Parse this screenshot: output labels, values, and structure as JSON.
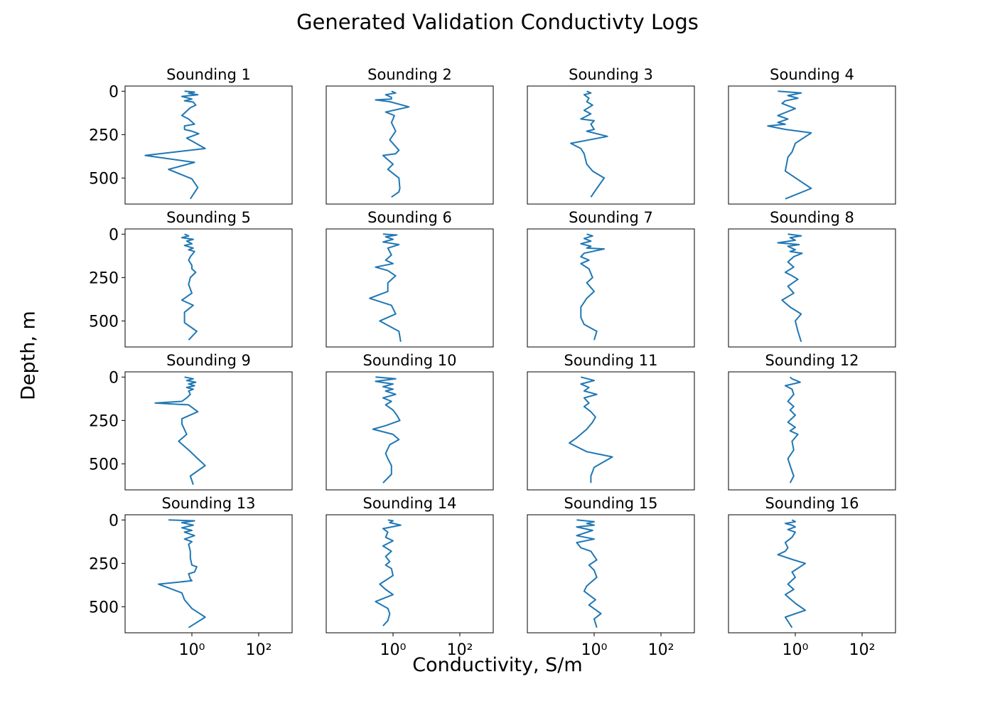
{
  "figure": {
    "title": "Generated Validation Conductivty Logs",
    "xlabel": "Conductivity, S/m",
    "ylabel": "Depth, m",
    "line_color": "#1f77b4"
  },
  "chart_data": {
    "type": "line",
    "x_scale": "log",
    "xlim": [
      0.01,
      1000
    ],
    "ylim": [
      650,
      -30
    ],
    "x_ticks": [
      1,
      100
    ],
    "x_tick_labels": [
      "10⁰",
      "10²"
    ],
    "y_ticks": [
      0,
      250,
      500
    ],
    "y_tick_labels": [
      "0",
      "250",
      "500"
    ],
    "grid": false,
    "panels": [
      {
        "title": "Sounding 1",
        "x": [
          0.6,
          1.2,
          0.8,
          1.5,
          0.5,
          1.0,
          0.6,
          1.1,
          1.3,
          0.9,
          0.5,
          0.8,
          1.2,
          0.6,
          0.6,
          1.0,
          1.6,
          0.7,
          2.5,
          0.04,
          1.2,
          0.2,
          1.0,
          1.5,
          0.9
        ],
        "y": [
          0,
          5,
          12,
          20,
          30,
          45,
          55,
          62,
          80,
          95,
          140,
          160,
          190,
          200,
          220,
          230,
          245,
          270,
          330,
          370,
          410,
          450,
          505,
          555,
          620
        ]
      },
      {
        "title": "Sounding 2",
        "x": [
          0.9,
          1.2,
          0.6,
          0.9,
          0.9,
          0.3,
          0.8,
          3.0,
          0.6,
          1.1,
          1.0,
          0.9,
          1.2,
          0.8,
          1.5,
          1.2,
          0.5,
          1.0,
          0.7,
          1.5,
          1.6,
          1.5,
          0.9
        ],
        "y": [
          0,
          10,
          20,
          35,
          45,
          50,
          60,
          90,
          120,
          140,
          160,
          180,
          230,
          280,
          340,
          360,
          370,
          420,
          450,
          500,
          560,
          580,
          610
        ]
      },
      {
        "title": "Sounding 3",
        "x": [
          0.6,
          0.8,
          0.5,
          0.7,
          0.6,
          0.9,
          0.5,
          0.8,
          0.4,
          1.0,
          0.8,
          1.0,
          0.6,
          2.5,
          0.2,
          0.4,
          0.5,
          0.6,
          0.9,
          2.0,
          1.2,
          0.8
        ],
        "y": [
          0,
          10,
          20,
          40,
          60,
          80,
          110,
          130,
          160,
          170,
          190,
          220,
          230,
          260,
          300,
          330,
          360,
          420,
          460,
          500,
          560,
          610
        ]
      },
      {
        "title": "Sounding 4",
        "x": [
          0.3,
          1.5,
          0.6,
          1.2,
          0.5,
          0.4,
          1.0,
          0.3,
          0.6,
          0.3,
          0.5,
          0.15,
          0.5,
          3.0,
          1.0,
          0.8,
          0.6,
          0.5,
          3.0,
          0.5
        ],
        "y": [
          0,
          10,
          25,
          40,
          55,
          70,
          100,
          140,
          160,
          180,
          190,
          200,
          220,
          240,
          300,
          350,
          380,
          460,
          560,
          620
        ]
      },
      {
        "title": "Sounding 5",
        "x": [
          0.6,
          0.8,
          0.5,
          1.1,
          0.7,
          1.0,
          0.6,
          1.1,
          0.8,
          1.2,
          0.9,
          0.8,
          1.0,
          1.0,
          1.3,
          0.9,
          0.8,
          1.0,
          0.5,
          1.1,
          0.6,
          0.6,
          1.4,
          0.8
        ],
        "y": [
          0,
          10,
          20,
          30,
          40,
          55,
          65,
          80,
          90,
          100,
          130,
          150,
          180,
          200,
          220,
          250,
          290,
          340,
          380,
          410,
          450,
          510,
          560,
          610
        ]
      },
      {
        "title": "Sounding 6",
        "x": [
          0.5,
          1.3,
          0.6,
          1.0,
          0.5,
          1.5,
          0.7,
          0.9,
          0.6,
          1.0,
          0.3,
          0.7,
          1.2,
          0.7,
          0.7,
          0.2,
          0.9,
          1.2,
          0.4,
          1.5,
          1.7
        ],
        "y": [
          0,
          5,
          15,
          30,
          45,
          60,
          80,
          120,
          150,
          170,
          190,
          210,
          240,
          280,
          330,
          370,
          410,
          460,
          500,
          560,
          620
        ]
      },
      {
        "title": "Sounding 7",
        "x": [
          0.6,
          0.9,
          0.5,
          0.8,
          0.4,
          0.8,
          0.6,
          2.0,
          0.5,
          0.4,
          0.7,
          0.4,
          0.7,
          0.9,
          0.6,
          1.0,
          0.6,
          0.4,
          0.4,
          0.5,
          1.2,
          1.0
        ],
        "y": [
          0,
          10,
          25,
          40,
          55,
          70,
          80,
          85,
          110,
          130,
          150,
          170,
          200,
          250,
          280,
          330,
          370,
          420,
          480,
          520,
          560,
          610
        ]
      },
      {
        "title": "Sounding 8",
        "x": [
          0.6,
          1.5,
          0.7,
          1.0,
          0.3,
          1.3,
          0.6,
          1.0,
          0.7,
          1.6,
          0.9,
          0.6,
          0.9,
          0.5,
          0.8,
          1.2,
          0.6,
          0.9,
          0.4,
          0.7,
          1.5,
          1.0,
          1.2,
          1.5
        ],
        "y": [
          0,
          10,
          20,
          35,
          50,
          60,
          70,
          90,
          100,
          110,
          130,
          160,
          190,
          220,
          240,
          260,
          300,
          340,
          380,
          420,
          460,
          500,
          560,
          620
        ]
      },
      {
        "title": "Sounding 9",
        "x": [
          0.6,
          1.1,
          0.7,
          1.3,
          0.8,
          1.2,
          0.7,
          1.1,
          0.8,
          0.9,
          0.7,
          0.5,
          0.08,
          0.8,
          1.5,
          0.5,
          0.5,
          0.7,
          0.4,
          0.8,
          1.5,
          2.5,
          0.9,
          1.1
        ],
        "y": [
          0,
          10,
          20,
          30,
          40,
          50,
          60,
          70,
          80,
          100,
          120,
          140,
          150,
          160,
          200,
          240,
          270,
          330,
          370,
          420,
          470,
          510,
          570,
          620
        ]
      },
      {
        "title": "Sounding 10",
        "x": [
          0.3,
          1.2,
          0.3,
          1.0,
          0.5,
          1.0,
          0.6,
          1.2,
          0.5,
          0.9,
          0.6,
          1.0,
          1.3,
          1.6,
          0.6,
          0.25,
          1.0,
          1.5,
          0.8,
          0.6,
          0.7,
          0.9,
          0.9,
          0.5
        ],
        "y": [
          0,
          10,
          25,
          40,
          55,
          70,
          80,
          100,
          120,
          140,
          160,
          190,
          220,
          250,
          280,
          300,
          330,
          360,
          390,
          440,
          470,
          510,
          560,
          610
        ]
      },
      {
        "title": "Sounding 11",
        "x": [
          0.4,
          1.0,
          0.4,
          0.7,
          0.5,
          1.2,
          0.5,
          0.7,
          0.5,
          0.8,
          1.1,
          0.9,
          0.6,
          0.3,
          0.18,
          0.6,
          3.5,
          1.0,
          0.8,
          0.8
        ],
        "y": [
          0,
          20,
          40,
          60,
          80,
          100,
          120,
          150,
          170,
          200,
          230,
          260,
          300,
          350,
          380,
          430,
          460,
          520,
          570,
          610
        ]
      },
      {
        "title": "Sounding 12",
        "x": [
          0.7,
          0.8,
          1.4,
          0.5,
          0.8,
          0.9,
          0.6,
          0.9,
          0.7,
          1.0,
          0.6,
          1.0,
          0.7,
          1.2,
          0.8,
          0.9,
          0.6,
          0.7,
          0.9,
          0.7
        ],
        "y": [
          0,
          10,
          30,
          50,
          70,
          100,
          140,
          170,
          190,
          220,
          260,
          290,
          310,
          330,
          370,
          420,
          470,
          510,
          570,
          610
        ]
      },
      {
        "title": "Sounding 13",
        "x": [
          0.2,
          1.2,
          0.5,
          1.1,
          0.5,
          1.0,
          0.6,
          1.2,
          0.6,
          1.0,
          0.8,
          0.9,
          0.9,
          1.0,
          1.4,
          1.2,
          0.8,
          0.9,
          1.0,
          0.1,
          0.5,
          0.6,
          1.0,
          2.5,
          0.8
        ],
        "y": [
          0,
          5,
          15,
          30,
          45,
          60,
          70,
          90,
          110,
          125,
          140,
          180,
          220,
          260,
          270,
          300,
          310,
          340,
          350,
          370,
          420,
          460,
          510,
          560,
          620
        ]
      },
      {
        "title": "Sounding 14",
        "x": [
          0.7,
          1.0,
          0.8,
          1.7,
          0.5,
          0.7,
          0.6,
          1.0,
          0.5,
          0.9,
          0.6,
          0.8,
          0.6,
          0.9,
          1.0,
          0.4,
          0.6,
          1.0,
          0.3,
          0.7,
          0.8,
          0.7,
          0.5
        ],
        "y": [
          0,
          5,
          15,
          30,
          50,
          70,
          100,
          120,
          150,
          180,
          210,
          240,
          260,
          280,
          320,
          370,
          400,
          430,
          470,
          510,
          540,
          580,
          610
        ]
      },
      {
        "title": "Sounding 15",
        "x": [
          0.3,
          1.0,
          0.6,
          1.0,
          0.3,
          0.9,
          0.3,
          1.0,
          0.3,
          0.4,
          0.8,
          1.2,
          0.7,
          1.0,
          1.2,
          0.6,
          0.5,
          1.1,
          0.7,
          1.6,
          1.0,
          1.2
        ],
        "y": [
          0,
          10,
          20,
          30,
          40,
          60,
          90,
          110,
          130,
          160,
          180,
          230,
          260,
          290,
          330,
          380,
          410,
          460,
          490,
          540,
          570,
          620
        ]
      },
      {
        "title": "Sounding 16",
        "x": [
          0.8,
          1.0,
          0.5,
          0.8,
          1.0,
          0.6,
          1.0,
          0.8,
          0.5,
          0.6,
          0.5,
          0.3,
          0.9,
          2.0,
          0.8,
          1.0,
          0.6,
          0.9,
          0.5,
          1.0,
          2.0,
          0.5,
          0.8
        ],
        "y": [
          0,
          10,
          20,
          30,
          40,
          55,
          70,
          100,
          130,
          160,
          180,
          200,
          230,
          250,
          300,
          330,
          370,
          400,
          430,
          480,
          520,
          560,
          620
        ]
      }
    ]
  }
}
